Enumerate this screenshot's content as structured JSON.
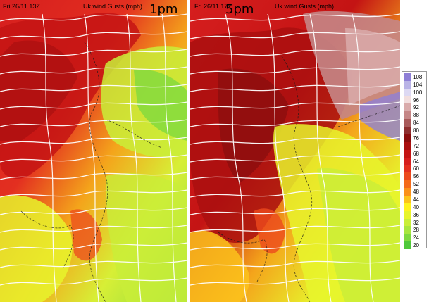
{
  "panels": [
    {
      "header_left": "Fri 26/11 13Z",
      "header_title": "Uk wind Gusts (mph)",
      "time_label": "1pm"
    },
    {
      "header_left": "Fri 26/11 17Z",
      "header_title": "Uk wind Gusts (mph)",
      "time_label": "5pm"
    }
  ],
  "legend": {
    "unit": "mph",
    "entries": [
      {
        "label": "108",
        "color": "#8e7fd6"
      },
      {
        "label": "104",
        "color": "#b9b3e6"
      },
      {
        "label": "100",
        "color": "#ddd9f3"
      },
      {
        "label": "96",
        "color": "#f2dede"
      },
      {
        "label": "92",
        "color": "#d9aaaa"
      },
      {
        "label": "88",
        "color": "#c58686"
      },
      {
        "label": "84",
        "color": "#a85a5a"
      },
      {
        "label": "80",
        "color": "#8e2f2f"
      },
      {
        "label": "76",
        "color": "#8a0d0d"
      },
      {
        "label": "72",
        "color": "#aa0f0f"
      },
      {
        "label": "68",
        "color": "#c41414"
      },
      {
        "label": "64",
        "color": "#d61e1e"
      },
      {
        "label": "60",
        "color": "#e32f20"
      },
      {
        "label": "56",
        "color": "#ec4a1d"
      },
      {
        "label": "52",
        "color": "#f46a1a"
      },
      {
        "label": "48",
        "color": "#fa911b"
      },
      {
        "label": "44",
        "color": "#fcc31c"
      },
      {
        "label": "40",
        "color": "#fff21e"
      },
      {
        "label": "36",
        "color": "#e7f42c"
      },
      {
        "label": "32",
        "color": "#c9ee38"
      },
      {
        "label": "28",
        "color": "#a8e63e"
      },
      {
        "label": "24",
        "color": "#7fd93e"
      },
      {
        "label": "20",
        "color": "#4fc83a"
      }
    ]
  }
}
